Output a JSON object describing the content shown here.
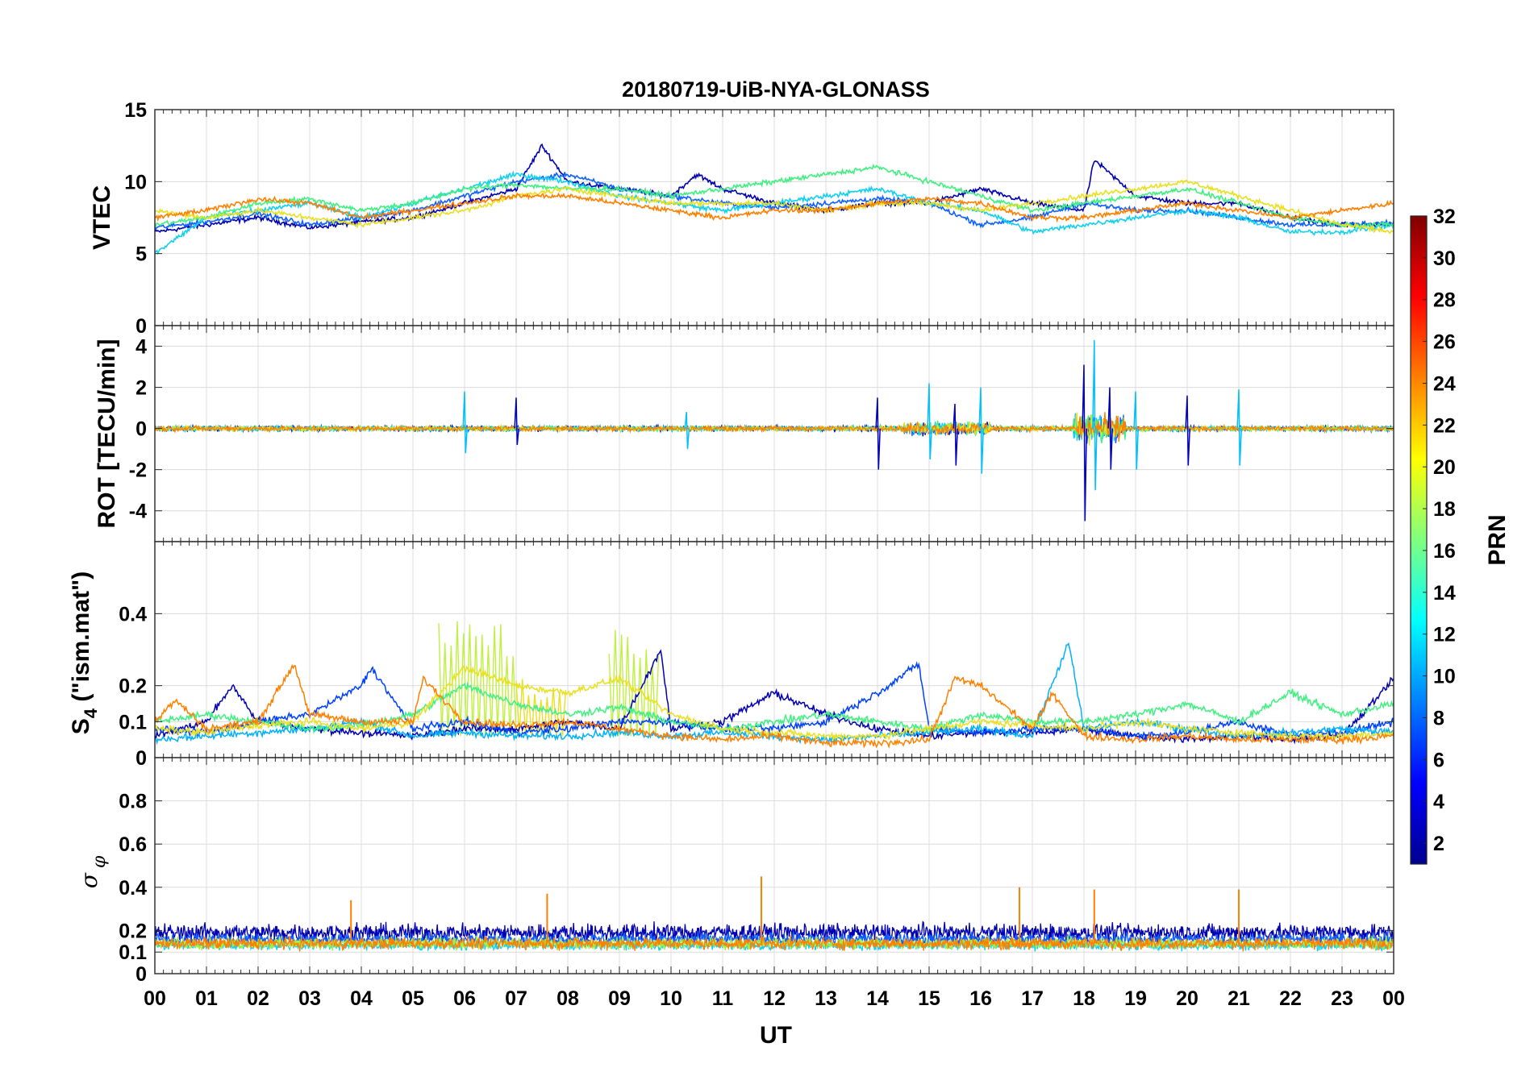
{
  "chart_data": {
    "type": "line",
    "title": "20180719-UiB-NYA-GLONASS",
    "xlabel": "UT",
    "x_tick_labels": [
      "00",
      "01",
      "02",
      "03",
      "04",
      "05",
      "06",
      "07",
      "08",
      "09",
      "10",
      "11",
      "12",
      "13",
      "14",
      "15",
      "16",
      "17",
      "18",
      "19",
      "20",
      "21",
      "22",
      "23",
      "00"
    ],
    "xlim_hours": [
      0,
      24
    ],
    "grid": true,
    "panels": [
      {
        "id": "vtec",
        "ylabel": "VTEC",
        "ylim": [
          0,
          15
        ],
        "yticks": [
          0,
          5,
          10,
          15
        ],
        "ytick_labels": [
          "0",
          "5",
          "10",
          "15"
        ],
        "series": [
          {
            "prn": 2,
            "x": [
              0.0,
              1.0,
              2.0,
              3.0,
              4.0,
              5.0,
              6.0,
              7.0,
              7.5,
              8.0,
              9.0,
              10.0,
              10.5,
              11.0,
              12.0,
              13.0,
              14.0,
              15.0,
              16.0,
              17.0,
              18.0,
              18.2,
              19.0,
              20.0,
              21.0,
              22.0,
              23.0,
              24.0
            ],
            "y": [
              6.5,
              7.0,
              7.5,
              6.8,
              7.2,
              7.5,
              8.5,
              9.5,
              12.5,
              10.0,
              9.5,
              9.0,
              10.5,
              9.5,
              8.5,
              8.0,
              8.5,
              8.5,
              9.5,
              8.5,
              8.0,
              11.5,
              9.0,
              8.5,
              8.5,
              7.5,
              7.0,
              7.0
            ]
          },
          {
            "prn": 8,
            "x": [
              0.0,
              1.0,
              2.0,
              3.0,
              4.0,
              5.0,
              6.0,
              7.0,
              8.0,
              9.0,
              10.0,
              11.0,
              12.0,
              13.0,
              14.0,
              15.0,
              16.0,
              17.0,
              18.0,
              19.0,
              20.0,
              21.0,
              22.0,
              23.0,
              24.0
            ],
            "y": [
              6.8,
              7.2,
              7.8,
              7.0,
              7.5,
              8.0,
              9.0,
              10.0,
              10.5,
              9.5,
              9.0,
              8.5,
              8.2,
              8.5,
              8.8,
              8.5,
              7.0,
              7.5,
              8.5,
              8.0,
              8.0,
              7.5,
              7.0,
              7.0,
              7.2
            ]
          },
          {
            "prn": 12,
            "x": [
              0.0,
              1.0,
              2.0,
              3.0,
              4.0,
              5.0,
              6.0,
              7.0,
              8.0,
              9.0,
              10.0,
              11.0,
              12.0,
              13.0,
              14.0,
              15.0,
              16.0,
              17.0,
              18.0,
              19.0,
              20.0,
              21.0,
              22.0,
              23.0,
              24.0
            ],
            "y": [
              5.0,
              7.5,
              8.0,
              8.5,
              7.5,
              8.5,
              9.5,
              10.5,
              10.0,
              9.0,
              8.5,
              8.0,
              8.5,
              9.0,
              9.5,
              8.5,
              8.0,
              6.5,
              7.0,
              7.5,
              8.0,
              7.5,
              6.5,
              6.5,
              7.0
            ]
          },
          {
            "prn": 16,
            "x": [
              0.0,
              1.0,
              2.0,
              3.0,
              4.0,
              5.0,
              6.0,
              7.0,
              8.0,
              9.0,
              10.0,
              11.0,
              12.0,
              13.0,
              14.0,
              15.0,
              16.0,
              17.0,
              18.0,
              19.0,
              20.0,
              21.0,
              22.0,
              23.0,
              24.0
            ],
            "y": [
              7.0,
              7.5,
              8.5,
              8.8,
              8.0,
              8.5,
              9.5,
              9.8,
              9.5,
              9.5,
              9.0,
              9.5,
              10.0,
              10.5,
              11.0,
              10.0,
              9.0,
              8.0,
              8.5,
              9.0,
              9.5,
              8.5,
              7.5,
              7.0,
              7.0
            ]
          },
          {
            "prn": 20,
            "x": [
              0.0,
              1.0,
              2.0,
              3.0,
              4.0,
              5.0,
              6.0,
              7.0,
              8.0,
              9.0,
              10.0,
              11.0,
              12.0,
              13.0,
              14.0,
              15.0,
              16.0,
              17.0,
              18.0,
              19.0,
              20.0,
              21.0,
              22.0,
              23.0,
              24.0
            ],
            "y": [
              8.0,
              7.5,
              8.0,
              7.5,
              7.0,
              7.5,
              8.0,
              9.0,
              9.5,
              9.0,
              8.5,
              8.5,
              8.5,
              8.0,
              8.5,
              8.5,
              8.0,
              8.5,
              9.0,
              9.5,
              10.0,
              9.0,
              8.0,
              7.0,
              6.5
            ]
          },
          {
            "prn": 24,
            "x": [
              0.0,
              1.0,
              2.0,
              3.0,
              4.0,
              5.0,
              6.0,
              7.0,
              8.0,
              9.0,
              10.0,
              11.0,
              12.0,
              13.0,
              14.0,
              15.0,
              16.0,
              17.0,
              18.0,
              19.0,
              20.0,
              21.0,
              22.0,
              23.0,
              24.0
            ],
            "y": [
              7.5,
              8.0,
              8.8,
              8.5,
              7.5,
              8.0,
              8.5,
              9.0,
              9.0,
              8.5,
              8.0,
              7.5,
              8.0,
              8.0,
              8.5,
              8.8,
              8.5,
              7.5,
              7.5,
              8.0,
              8.5,
              8.0,
              7.5,
              8.0,
              8.5
            ]
          }
        ]
      },
      {
        "id": "rot",
        "ylabel": "ROT [TECU/min]",
        "ylim": [
          -5.5,
          5
        ],
        "yticks": [
          -4,
          -2,
          0,
          2,
          4
        ],
        "ytick_labels": [
          "-4",
          "-2",
          "0",
          "2",
          "4"
        ],
        "baseline": 0,
        "spikes": [
          {
            "x": 6.0,
            "ymin": -1.2,
            "ymax": 1.8
          },
          {
            "x": 7.0,
            "ymin": -0.8,
            "ymax": 1.5
          },
          {
            "x": 10.3,
            "ymin": -1.0,
            "ymax": 0.8
          },
          {
            "x": 14.0,
            "ymin": -2.0,
            "ymax": 1.5
          },
          {
            "x": 15.0,
            "ymin": -1.5,
            "ymax": 2.2
          },
          {
            "x": 15.5,
            "ymin": -1.8,
            "ymax": 1.2
          },
          {
            "x": 16.0,
            "ymin": -2.2,
            "ymax": 2.0
          },
          {
            "x": 18.0,
            "ymin": -4.5,
            "ymax": 3.1
          },
          {
            "x": 18.2,
            "ymin": -3.0,
            "ymax": 4.3
          },
          {
            "x": 18.5,
            "ymin": -2.0,
            "ymax": 2.0
          },
          {
            "x": 19.0,
            "ymin": -2.0,
            "ymax": 1.8
          },
          {
            "x": 20.0,
            "ymin": -1.8,
            "ymax": 1.6
          },
          {
            "x": 21.0,
            "ymin": -1.8,
            "ymax": 1.9
          }
        ]
      },
      {
        "id": "s4",
        "ylabel": "S_4 (\"ism.mat\")",
        "ylabel_main": "S",
        "ylabel_sub": "4",
        "ylabel_rest": " (\"ism.mat\")",
        "ylim": [
          0,
          0.6
        ],
        "yticks": [
          0,
          0.1,
          0.2,
          0.4
        ],
        "ytick_labels": [
          "0",
          "0.1",
          "0.2",
          "0.4"
        ],
        "series": [
          {
            "prn": 2,
            "x": [
              0,
              1,
              1.5,
              2,
              3,
              4,
              5,
              6,
              7,
              8,
              9,
              9.8,
              10,
              11,
              12,
              13,
              14,
              15,
              16,
              17,
              18,
              19,
              20,
              21,
              22,
              23,
              24
            ],
            "y": [
              0.06,
              0.1,
              0.2,
              0.1,
              0.08,
              0.07,
              0.06,
              0.08,
              0.08,
              0.1,
              0.08,
              0.3,
              0.08,
              0.1,
              0.18,
              0.12,
              0.08,
              0.06,
              0.07,
              0.07,
              0.08,
              0.06,
              0.05,
              0.06,
              0.05,
              0.06,
              0.22
            ]
          },
          {
            "prn": 6,
            "x": [
              0,
              1,
              2,
              3,
              4,
              4.2,
              5,
              6,
              7,
              8,
              9,
              10,
              11,
              12,
              13,
              14,
              14.8,
              15,
              16,
              17,
              18,
              19,
              20,
              21,
              22,
              23,
              24
            ],
            "y": [
              0.08,
              0.07,
              0.1,
              0.12,
              0.2,
              0.25,
              0.08,
              0.1,
              0.07,
              0.08,
              0.1,
              0.1,
              0.08,
              0.08,
              0.1,
              0.18,
              0.26,
              0.08,
              0.07,
              0.08,
              0.08,
              0.06,
              0.07,
              0.1,
              0.06,
              0.07,
              0.1
            ]
          },
          {
            "prn": 10,
            "x": [
              0,
              1,
              2,
              3,
              4,
              5,
              6,
              7,
              8,
              9,
              10,
              11,
              12,
              13,
              14,
              15,
              16,
              17,
              17.7,
              18,
              19,
              20,
              21,
              22,
              23,
              24
            ],
            "y": [
              0.05,
              0.06,
              0.07,
              0.08,
              0.1,
              0.06,
              0.07,
              0.06,
              0.06,
              0.07,
              0.06,
              0.07,
              0.06,
              0.05,
              0.06,
              0.07,
              0.08,
              0.06,
              0.32,
              0.08,
              0.1,
              0.08,
              0.06,
              0.07,
              0.08,
              0.07
            ]
          },
          {
            "prn": 16,
            "x": [
              0,
              1,
              2,
              3,
              4,
              5,
              6,
              7,
              8,
              9,
              10,
              11,
              12,
              13,
              14,
              15,
              16,
              17,
              18,
              19,
              20,
              21,
              22,
              23,
              24
            ],
            "y": [
              0.1,
              0.12,
              0.1,
              0.08,
              0.09,
              0.12,
              0.2,
              0.15,
              0.12,
              0.14,
              0.1,
              0.08,
              0.1,
              0.12,
              0.1,
              0.08,
              0.12,
              0.1,
              0.1,
              0.12,
              0.15,
              0.1,
              0.18,
              0.12,
              0.15
            ]
          },
          {
            "prn": 20,
            "x": [
              0,
              1,
              2,
              3,
              4,
              5,
              6,
              7,
              8,
              9,
              10,
              11,
              12,
              13,
              14,
              15,
              16,
              17,
              18,
              19,
              20,
              21,
              22,
              23,
              24
            ],
            "y": [
              0.08,
              0.07,
              0.09,
              0.1,
              0.08,
              0.1,
              0.25,
              0.2,
              0.18,
              0.22,
              0.12,
              0.08,
              0.07,
              0.06,
              0.06,
              0.08,
              0.1,
              0.09,
              0.08,
              0.1,
              0.08,
              0.07,
              0.06,
              0.06,
              0.07
            ]
          },
          {
            "prn": 24,
            "x": [
              0,
              0.4,
              1,
              2,
              2.7,
              3,
              4,
              5,
              5.2,
              6,
              7,
              8,
              9,
              10,
              11,
              12,
              13,
              14,
              15,
              15.5,
              16,
              17,
              17.4,
              18,
              19,
              20,
              21,
              22,
              23,
              24
            ],
            "y": [
              0.1,
              0.16,
              0.08,
              0.1,
              0.26,
              0.12,
              0.1,
              0.1,
              0.22,
              0.1,
              0.09,
              0.1,
              0.08,
              0.06,
              0.05,
              0.06,
              0.04,
              0.04,
              0.05,
              0.22,
              0.2,
              0.08,
              0.18,
              0.06,
              0.05,
              0.06,
              0.05,
              0.05,
              0.05,
              0.06
            ]
          }
        ],
        "oscillation_bands": [
          {
            "x_start": 5.5,
            "x_end": 7.0,
            "ymax": 0.38
          },
          {
            "x_start": 7.0,
            "x_end": 8.0,
            "ymax": 0.22
          },
          {
            "x_start": 8.8,
            "x_end": 9.8,
            "ymax": 0.36
          }
        ]
      },
      {
        "id": "sigma_phi",
        "ylabel": "σ_φ",
        "ylabel_main": "σ",
        "ylabel_sub": "φ",
        "ylim": [
          0,
          1
        ],
        "yticks": [
          0,
          0.1,
          0.2,
          0.4,
          0.6,
          0.8
        ],
        "ytick_labels": [
          "0",
          "0.1",
          "0.2",
          "0.4",
          "0.6",
          "0.8"
        ],
        "series": [
          {
            "prn": 2,
            "baseline": 0.19,
            "noise": 0.06
          },
          {
            "prn": 8,
            "baseline": 0.16,
            "noise": 0.04
          },
          {
            "prn": 12,
            "baseline": 0.13,
            "noise": 0.03
          },
          {
            "prn": 18,
            "baseline": 0.14,
            "noise": 0.04
          },
          {
            "prn": 24,
            "baseline": 0.14,
            "noise": 0.04
          }
        ],
        "spikes": [
          {
            "x": 3.8,
            "y": 0.34
          },
          {
            "x": 7.6,
            "y": 0.37
          },
          {
            "x": 11.75,
            "y": 0.45
          },
          {
            "x": 16.75,
            "y": 0.4
          },
          {
            "x": 18.2,
            "y": 0.39
          },
          {
            "x": 21.0,
            "y": 0.39
          }
        ]
      }
    ],
    "colorbar": {
      "label": "PRN",
      "colormap": "jet",
      "range": [
        1,
        32
      ],
      "ticks": [
        2,
        4,
        6,
        8,
        10,
        12,
        14,
        16,
        18,
        20,
        22,
        24,
        26,
        28,
        30,
        32
      ],
      "tick_labels": [
        "2",
        "4",
        "6",
        "8",
        "10",
        "12",
        "14",
        "16",
        "18",
        "20",
        "22",
        "24",
        "26",
        "28",
        "30",
        "32"
      ]
    }
  }
}
